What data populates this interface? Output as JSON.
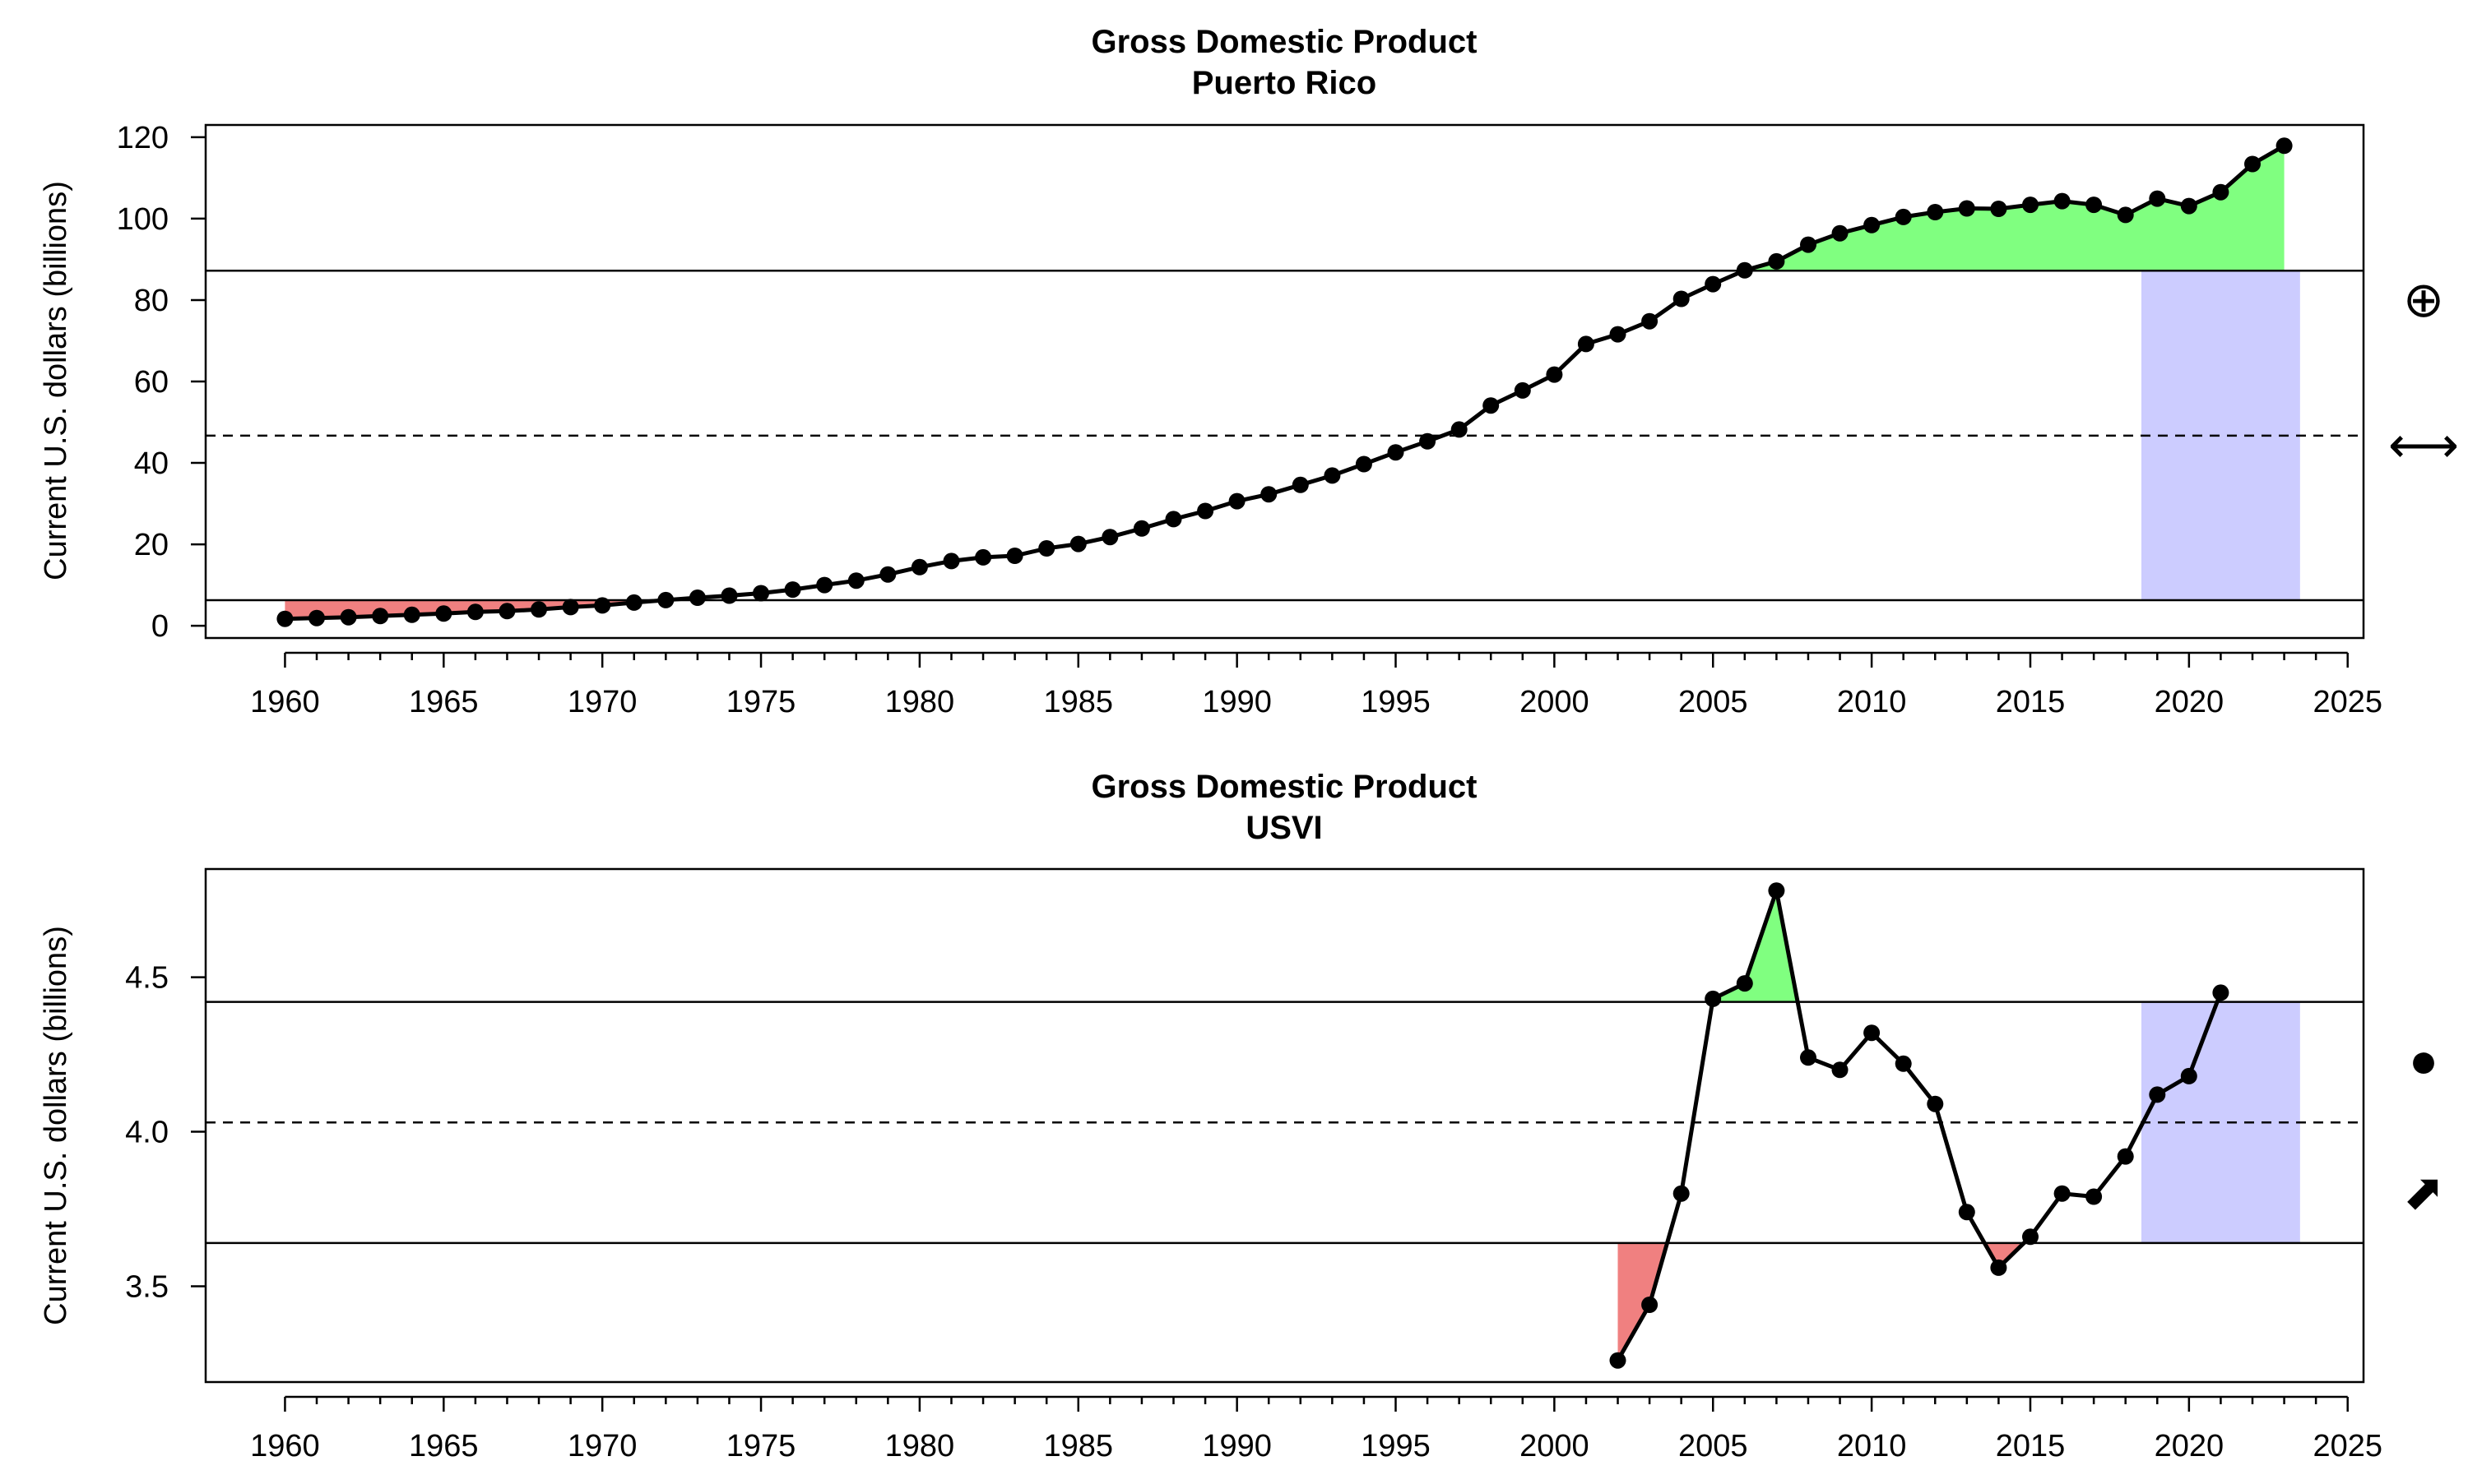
{
  "chart_data": [
    {
      "type": "line",
      "title": "Gross Domestic Product",
      "subtitle": "Puerto Rico",
      "xlabel": "",
      "ylabel": "Current U.S. dollars (billions)",
      "xlim": [
        1957.5,
        2025.5
      ],
      "ylim": [
        -3,
        123
      ],
      "x_ticks": [
        1960,
        1965,
        1970,
        1975,
        1980,
        1985,
        1990,
        1995,
        2000,
        2005,
        2010,
        2015,
        2020,
        2025
      ],
      "y_ticks": [
        0,
        20,
        40,
        60,
        80,
        100,
        120
      ],
      "y_tick_labels": [
        "0",
        "20",
        "40",
        "60",
        "80",
        "100",
        "120"
      ],
      "grid": false,
      "legend": "none",
      "mean": 46.7,
      "upper_line": 87.2,
      "lower_line": 6.3,
      "recent_window": [
        2018.5,
        2023.5
      ],
      "colors": {
        "above": "#80ff80",
        "below": "#f08080",
        "window": "#ccccff",
        "line": "#000000"
      },
      "side_icons": [
        {
          "icon": "circle-plus-icon",
          "char": "⊕"
        },
        {
          "icon": "double-arrow-icon",
          "char": "⟷"
        }
      ],
      "series": [
        {
          "x": [
            1960,
            1961,
            1962,
            1963,
            1964,
            1965,
            1966,
            1967,
            1968,
            1969,
            1970,
            1971,
            1972,
            1973,
            1974,
            1975,
            1976,
            1977,
            1978,
            1979,
            1980,
            1981,
            1982,
            1983,
            1984,
            1985,
            1986,
            1987,
            1988,
            1989,
            1990,
            1991,
            1992,
            1993,
            1994,
            1995,
            1996,
            1997,
            1998,
            1999,
            2000,
            2001,
            2002,
            2003,
            2004,
            2005,
            2006,
            2007,
            2008,
            2009,
            2010,
            2011,
            2012,
            2013,
            2014,
            2015,
            2016,
            2017,
            2018,
            2019,
            2020,
            2021,
            2022,
            2023
          ],
          "values": [
            1.7,
            1.9,
            2.1,
            2.4,
            2.7,
            3.0,
            3.4,
            3.6,
            4.0,
            4.6,
            5.0,
            5.7,
            6.3,
            6.9,
            7.4,
            8.0,
            8.9,
            10.0,
            11.1,
            12.6,
            14.4,
            15.9,
            16.8,
            17.2,
            19.0,
            20.1,
            21.8,
            23.9,
            26.2,
            28.2,
            30.6,
            32.3,
            34.6,
            36.9,
            39.7,
            42.6,
            45.3,
            48.2,
            54.1,
            57.8,
            61.7,
            69.2,
            71.6,
            74.8,
            80.3,
            83.9,
            87.3,
            89.5,
            93.6,
            96.4,
            98.4,
            100.4,
            101.6,
            102.5,
            102.4,
            103.4,
            104.3,
            103.4,
            100.9,
            104.9,
            103.1,
            106.5,
            113.4,
            117.9
          ]
        }
      ]
    },
    {
      "type": "line",
      "title": "Gross Domestic Product",
      "subtitle": "USVI",
      "xlabel": "",
      "ylabel": "Current U.S. dollars (billions)",
      "xlim": [
        1957.5,
        2025.5
      ],
      "ylim": [
        3.19,
        4.85
      ],
      "x_ticks": [
        1960,
        1965,
        1970,
        1975,
        1980,
        1985,
        1990,
        1995,
        2000,
        2005,
        2010,
        2015,
        2020,
        2025
      ],
      "y_ticks": [
        3.5,
        4.0,
        4.5
      ],
      "y_tick_labels": [
        "3.5",
        "4.0",
        "4.5"
      ],
      "grid": false,
      "legend": "none",
      "mean": 4.03,
      "upper_line": 4.42,
      "lower_line": 3.64,
      "recent_window": [
        2018.5,
        2023.5
      ],
      "colors": {
        "above": "#80ff80",
        "below": "#f08080",
        "window": "#ccccff",
        "line": "#000000"
      },
      "side_icons": [
        {
          "icon": "filled-circle-icon",
          "char": "●"
        },
        {
          "icon": "arrow-up-right-icon",
          "char": "⬈"
        }
      ],
      "series": [
        {
          "x": [
            2002,
            2003,
            2004,
            2005,
            2006,
            2007,
            2008,
            2009,
            2010,
            2011,
            2012,
            2013,
            2014,
            2015,
            2016,
            2017,
            2018,
            2019,
            2020,
            2021
          ],
          "values": [
            3.26,
            3.44,
            3.8,
            4.43,
            4.48,
            4.78,
            4.24,
            4.2,
            4.32,
            4.22,
            4.09,
            3.74,
            3.56,
            3.66,
            3.8,
            3.79,
            3.92,
            4.12,
            4.18,
            4.45
          ]
        }
      ]
    }
  ]
}
